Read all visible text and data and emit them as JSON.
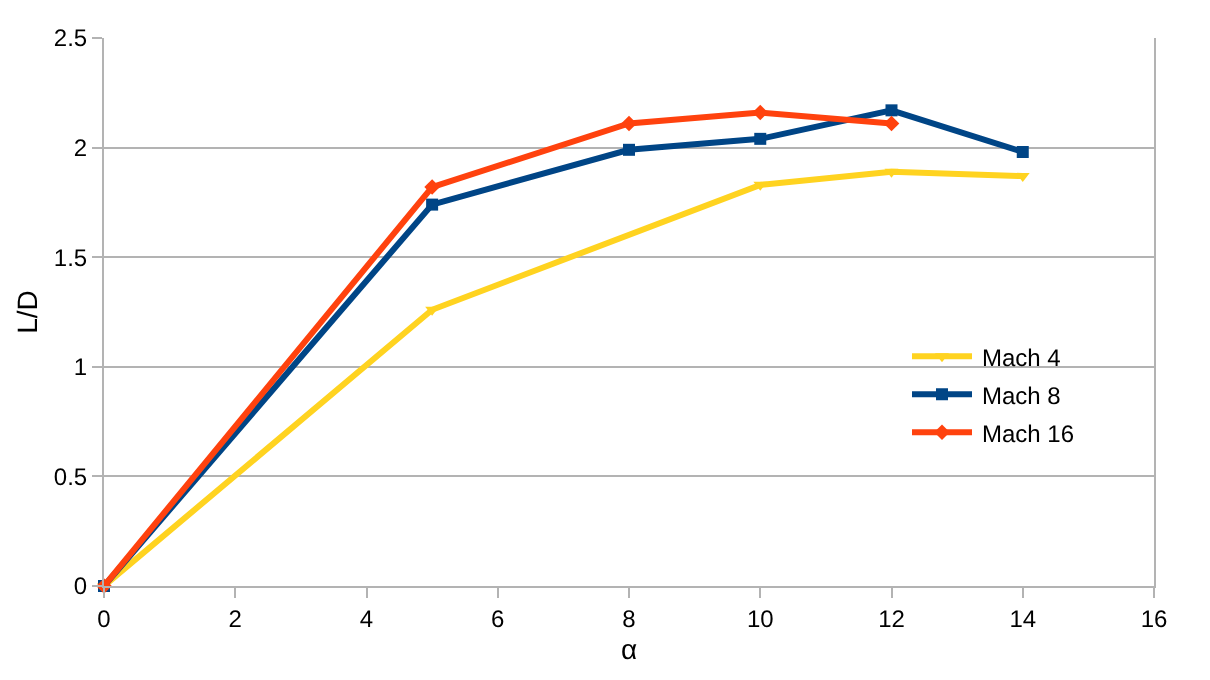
{
  "chart_data": {
    "type": "line",
    "xlabel": "α",
    "ylabel": "L/D",
    "xlim": [
      0,
      16
    ],
    "xticks": [
      0,
      2,
      4,
      6,
      8,
      10,
      12,
      14,
      16
    ],
    "ylim": [
      0,
      2.5
    ],
    "yticks": [
      0,
      0.5,
      1,
      1.5,
      2,
      2.5
    ],
    "grid": "y",
    "legend": "right",
    "series": [
      {
        "name": "Mach 4",
        "color": "#ffd320",
        "marker": "triangle",
        "x": [
          0,
          5,
          10,
          12,
          14
        ],
        "values": [
          0,
          1.26,
          1.83,
          1.89,
          1.87
        ]
      },
      {
        "name": "Mach 8",
        "color": "#004586",
        "marker": "square",
        "x": [
          0,
          5,
          8,
          10,
          12,
          14
        ],
        "values": [
          0,
          1.74,
          1.99,
          2.04,
          2.17,
          1.98
        ]
      },
      {
        "name": "Mach 16",
        "color": "#ff420e",
        "marker": "diamond",
        "x": [
          0,
          5,
          8,
          10,
          12
        ],
        "values": [
          0,
          1.82,
          2.11,
          2.16,
          2.11
        ]
      }
    ]
  }
}
